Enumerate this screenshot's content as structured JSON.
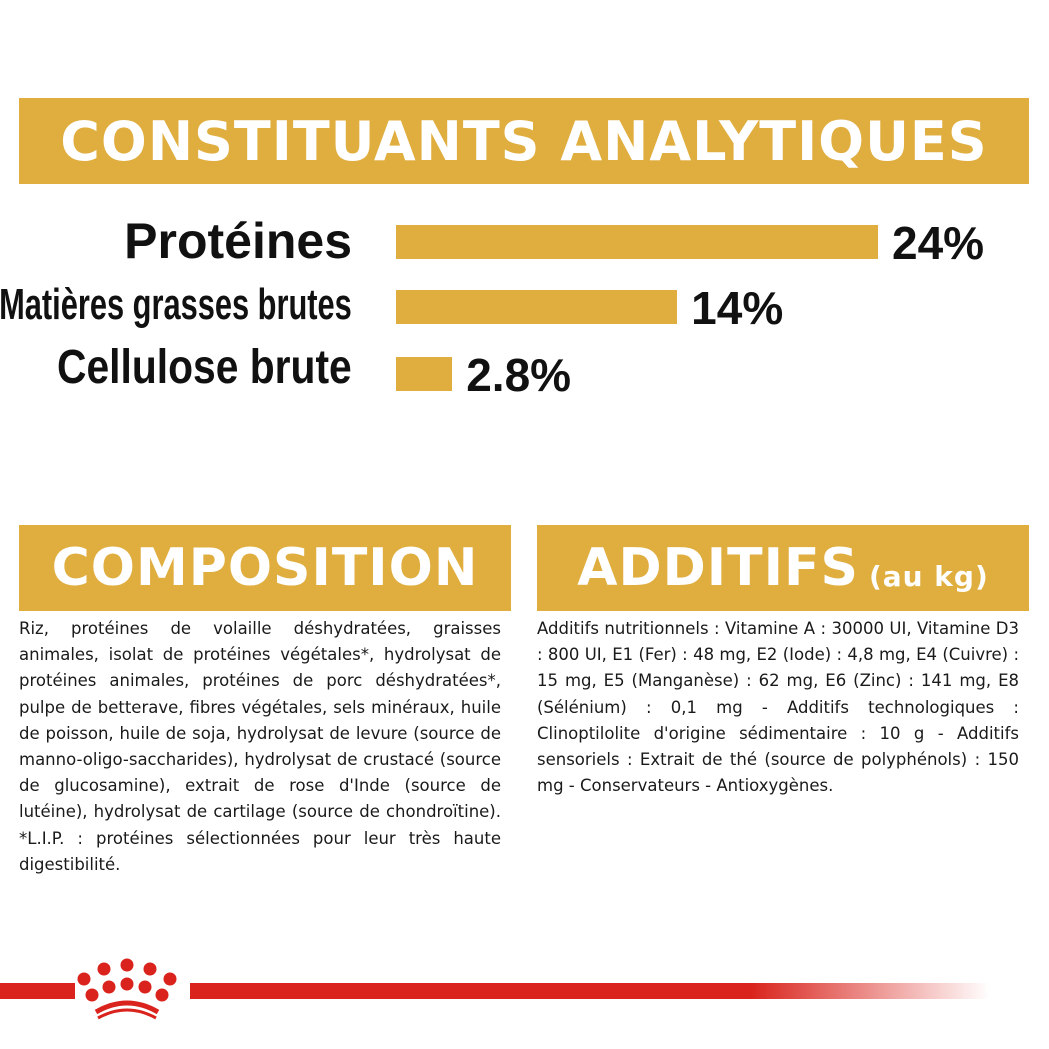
{
  "analytical": {
    "title": "CONSTITUANTS ANALYTIQUES",
    "items": [
      {
        "label": "Protéines",
        "value": "24%",
        "percent": 24
      },
      {
        "label": "Matières grasses brutes",
        "value": "14%",
        "percent": 14
      },
      {
        "label": "Cellulose brute",
        "value": "2.8%",
        "percent": 2.8
      }
    ]
  },
  "composition": {
    "title": "COMPOSITION",
    "text": "Riz, protéines de volaille déshydratées, graisses animales, isolat de protéines végétales*, hydrolysat de protéines animales, protéines de porc déshydratées*, pulpe de betterave, fibres végétales, sels minéraux, huile de poisson, huile de soja, hydrolysat de levure (source de manno-oligo-saccharides), hydrolysat de crustacé (source de glucosamine), extrait de rose d'Inde (source de lutéine), hydrolysat de cartilage (source de chondroïtine). *L.I.P. : protéines sélectionnées pour leur très haute digestibilité."
  },
  "additives": {
    "title": "ADDITIFS",
    "subtitle": "(au kg)",
    "text": "Additifs nutritionnels : Vitamine A : 30000 UI, Vitamine D3 : 800 UI, E1 (Fer) : 48 mg, E2 (Iode) : 4,8 mg, E4 (Cuivre) : 15 mg, E5 (Manganèse) : 62 mg, E6 (Zinc) : 141 mg, E8 (Sélénium) : 0,1 mg - Additifs technologiques : Clinoptilolite d'origine sédimentaire : 10 g - Additifs sensoriels : Extrait de thé (source de polyphénols) : 150 mg - Conservateurs - Antioxygènes."
  },
  "logo": {
    "name": "crown-logo",
    "text": "Royal Canin"
  },
  "colors": {
    "accent": "#E0AE3F",
    "brand_red": "#D9231C"
  }
}
